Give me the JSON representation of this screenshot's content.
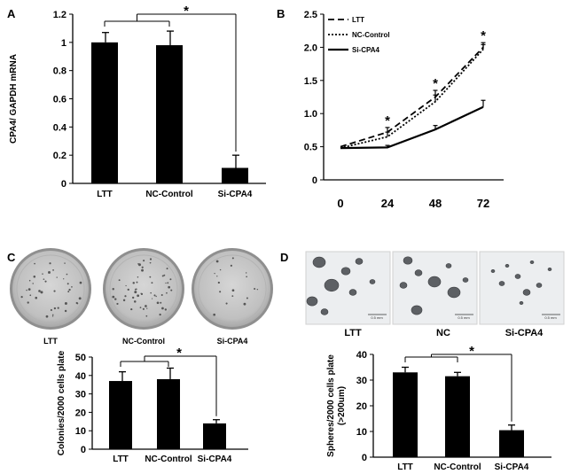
{
  "panels": {
    "a": "A",
    "b": "B",
    "c": "C",
    "d": "D"
  },
  "significance_marker": "*",
  "colors": {
    "bar": "#000000",
    "dish_bg": "#c4c4c4",
    "micro_bg": "#eceef0",
    "sphere": "#5d6064"
  },
  "images_c": {
    "captions": [
      "LTT",
      "NC-Control",
      "Si-CPA4"
    ]
  },
  "images_d": {
    "captions": [
      "LTT",
      "NC",
      "Si-CPA4"
    ],
    "scale_bar_text": "0.5 mm"
  },
  "chart_data": [
    {
      "id": "A",
      "type": "bar",
      "categories": [
        "LTT",
        "NC-Control",
        "Si-CPA4"
      ],
      "values": [
        1.0,
        0.98,
        0.11
      ],
      "errors": [
        0.07,
        0.1,
        0.09
      ],
      "ylabel": "CPA4/ GAPDH mRNA",
      "ylim": [
        0,
        1.2
      ],
      "yticks": [
        0,
        0.2,
        0.4,
        0.6,
        0.8,
        1,
        1.2
      ],
      "ytick_labels": [
        "0",
        "0.2",
        "0.4",
        "0.6",
        "0.8",
        "1",
        "1.2"
      ],
      "comparison": {
        "group": [
          "LTT",
          "NC-Control"
        ],
        "vs": "Si-CPA4",
        "marker": "*"
      }
    },
    {
      "id": "B",
      "type": "line",
      "x": [
        0,
        24,
        48,
        72
      ],
      "xtick_labels": [
        "0",
        "24",
        "48",
        "72"
      ],
      "ylim": [
        0,
        2.5
      ],
      "yticks": [
        0,
        0.5,
        1.0,
        1.5,
        2.0,
        2.5
      ],
      "ytick_labels": [
        "0",
        "0.5",
        "1.0",
        "1.5",
        "2.0",
        "2.5"
      ],
      "series": [
        {
          "name": "LTT",
          "style": "dashed",
          "values": [
            0.5,
            0.72,
            1.25,
            2.0
          ],
          "errors": [
            0.05,
            0.07,
            0.1,
            0.07
          ]
        },
        {
          "name": "NC-Control",
          "style": "dotted",
          "values": [
            0.48,
            0.65,
            1.18,
            1.97
          ],
          "errors": [
            0.05,
            0.07,
            0.1,
            0.07
          ]
        },
        {
          "name": "Si-CPA4",
          "style": "solid",
          "values": [
            0.48,
            0.49,
            0.76,
            1.1
          ],
          "errors": [
            0.03,
            0.03,
            0.06,
            0.1
          ]
        }
      ],
      "significance_at": [
        24,
        48,
        72
      ],
      "significance_marker": "*",
      "legend": "top-left"
    },
    {
      "id": "C",
      "type": "bar",
      "categories": [
        "LTT",
        "NC-Control",
        "Si-CPA4"
      ],
      "values": [
        37,
        38,
        14
      ],
      "errors": [
        5,
        6,
        2
      ],
      "ylabel": "Colonies/2000 cells plate",
      "ylim": [
        0,
        50
      ],
      "yticks": [
        0,
        10,
        20,
        30,
        40,
        50
      ],
      "ytick_labels": [
        "0",
        "10",
        "20",
        "30",
        "40",
        "50"
      ],
      "comparison": {
        "group": [
          "LTT",
          "NC-Control"
        ],
        "vs": "Si-CPA4",
        "marker": "*"
      }
    },
    {
      "id": "D",
      "type": "bar",
      "categories": [
        "LTT",
        "NC-Control",
        "Si-CPA4"
      ],
      "values": [
        33,
        31.5,
        10.5
      ],
      "errors": [
        2,
        1.5,
        2
      ],
      "ylabel": "Spheres/2000 cells plate",
      "ylabel2": "(>200um)",
      "ylim": [
        0,
        40
      ],
      "yticks": [
        0,
        10,
        20,
        30,
        40
      ],
      "ytick_labels": [
        "0",
        "10",
        "20",
        "30",
        "40"
      ],
      "comparison": {
        "group": [
          "LTT",
          "NC-Control"
        ],
        "vs": "Si-CPA4",
        "marker": "*"
      }
    }
  ]
}
